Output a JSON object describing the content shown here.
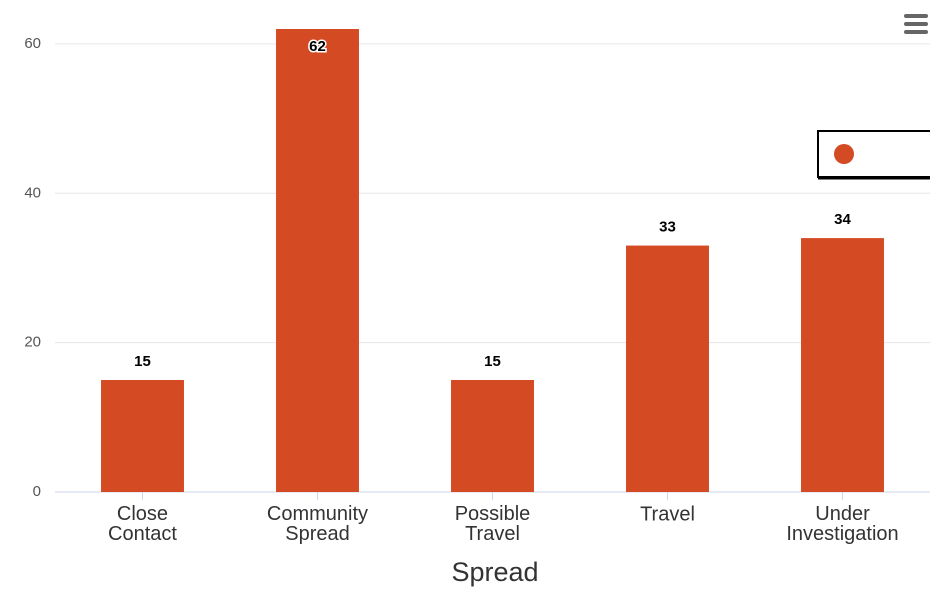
{
  "chart_data": {
    "type": "bar",
    "x_label": "Spread",
    "categories": [
      "Close Contact",
      "Community Spread",
      "Possible Travel",
      "Travel",
      "Under Investigation"
    ],
    "values": [
      15,
      62,
      15,
      33,
      34
    ],
    "color": "#d44a23",
    "ylim": [
      0,
      62
    ],
    "yticks": [
      0,
      20,
      40,
      60
    ],
    "grid": true,
    "legend": "right"
  }
}
